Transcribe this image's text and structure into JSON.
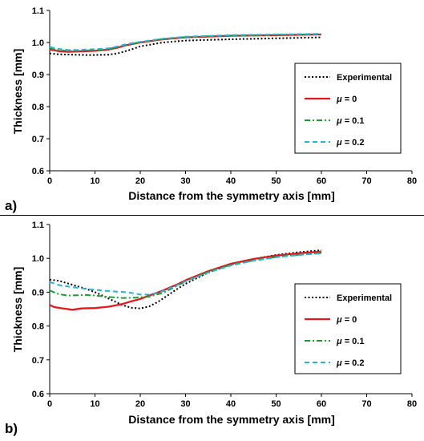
{
  "chart_data": [
    {
      "panel_label": "a)",
      "type": "line",
      "xlabel": "Distance from the symmetry axis [mm]",
      "ylabel": "Thickness [mm]",
      "xlim": [
        0,
        80
      ],
      "ylim": [
        0.6,
        1.1
      ],
      "xticks": [
        "0",
        "10",
        "20",
        "30",
        "40",
        "50",
        "60",
        "70",
        "80"
      ],
      "yticks": [
        "0.6",
        "0.7",
        "0.8",
        "0.9",
        "1.0",
        "1.1"
      ],
      "grid": false,
      "legend_position": "right",
      "series": [
        {
          "name": "Experimental",
          "style": "dotted",
          "color": "#000000",
          "x": [
            0,
            2,
            5,
            8,
            10,
            13,
            15,
            18,
            20,
            25,
            30,
            40,
            50,
            60
          ],
          "y": [
            0.966,
            0.963,
            0.962,
            0.961,
            0.961,
            0.962,
            0.966,
            0.978,
            0.988,
            1.0,
            1.006,
            1.01,
            1.013,
            1.016
          ]
        },
        {
          "name": "μ = 0",
          "style": "solid",
          "color": "#e8161b",
          "x": [
            0,
            2,
            4,
            6,
            8,
            10,
            13,
            15,
            17,
            20,
            25,
            30,
            40,
            50,
            60
          ],
          "y": [
            0.978,
            0.973,
            0.971,
            0.972,
            0.973,
            0.974,
            0.978,
            0.984,
            0.992,
            1.0,
            1.01,
            1.016,
            1.021,
            1.023,
            1.025
          ]
        },
        {
          "name": "μ = 0.1",
          "style": "dashdot",
          "color": "#16a02e",
          "x": [
            0,
            2,
            4,
            6,
            8,
            10,
            13,
            15,
            17,
            20,
            25,
            30,
            40,
            50,
            60
          ],
          "y": [
            0.982,
            0.976,
            0.974,
            0.974,
            0.975,
            0.976,
            0.98,
            0.986,
            0.993,
            1.001,
            1.011,
            1.017,
            1.022,
            1.024,
            1.026
          ]
        },
        {
          "name": "μ = 0.2",
          "style": "dashed",
          "color": "#22b4e6",
          "x": [
            0,
            2,
            4,
            6,
            8,
            10,
            13,
            15,
            17,
            20,
            25,
            30,
            40,
            50,
            60
          ],
          "y": [
            0.986,
            0.98,
            0.977,
            0.977,
            0.978,
            0.979,
            0.982,
            0.988,
            0.995,
            1.002,
            1.012,
            1.018,
            1.023,
            1.025,
            1.027
          ]
        }
      ]
    },
    {
      "panel_label": "b)",
      "type": "line",
      "xlabel": "Distance from the symmetry axis [mm]",
      "ylabel": "Thickness [mm]",
      "xlim": [
        0,
        80
      ],
      "ylim": [
        0.6,
        1.1
      ],
      "xticks": [
        "0",
        "10",
        "20",
        "30",
        "40",
        "50",
        "60",
        "70",
        "80"
      ],
      "yticks": [
        "0.6",
        "0.7",
        "0.8",
        "0.9",
        "1.0",
        "1.1"
      ],
      "grid": false,
      "legend_position": "right",
      "series": [
        {
          "name": "Experimental",
          "style": "dotted",
          "color": "#000000",
          "x": [
            0,
            2,
            5,
            8,
            10,
            12,
            14,
            16,
            18,
            20,
            22,
            24,
            26,
            28,
            30,
            35,
            40,
            45,
            50,
            55,
            60
          ],
          "y": [
            0.937,
            0.934,
            0.922,
            0.91,
            0.9,
            0.888,
            0.875,
            0.862,
            0.854,
            0.852,
            0.858,
            0.872,
            0.89,
            0.908,
            0.925,
            0.958,
            0.982,
            0.998,
            1.01,
            1.018,
            1.024
          ]
        },
        {
          "name": "μ = 0",
          "style": "solid",
          "color": "#e8161b",
          "x": [
            0,
            1,
            3,
            5,
            7,
            10,
            13,
            16,
            18,
            20,
            22,
            25,
            28,
            30,
            35,
            40,
            45,
            50,
            55,
            60
          ],
          "y": [
            0.862,
            0.856,
            0.852,
            0.848,
            0.852,
            0.853,
            0.857,
            0.865,
            0.873,
            0.88,
            0.89,
            0.905,
            0.922,
            0.935,
            0.962,
            0.984,
            0.998,
            1.008,
            1.015,
            1.02
          ]
        },
        {
          "name": "μ = 0.1",
          "style": "dashdot",
          "color": "#16a02e",
          "x": [
            0,
            2,
            4,
            6,
            8,
            10,
            13,
            16,
            19,
            22,
            25,
            28,
            30,
            35,
            40,
            45,
            50,
            55,
            60
          ],
          "y": [
            0.905,
            0.894,
            0.89,
            0.891,
            0.892,
            0.89,
            0.886,
            0.883,
            0.884,
            0.887,
            0.898,
            0.918,
            0.932,
            0.96,
            0.981,
            0.994,
            1.004,
            1.011,
            1.016
          ]
        },
        {
          "name": "μ = 0.2",
          "style": "dashed",
          "color": "#22b4e6",
          "x": [
            0,
            2,
            5,
            8,
            10,
            13,
            16,
            18,
            20,
            22,
            25,
            28,
            30,
            35,
            40,
            45,
            50,
            55,
            60
          ],
          "y": [
            0.93,
            0.921,
            0.915,
            0.91,
            0.907,
            0.903,
            0.901,
            0.898,
            0.893,
            0.893,
            0.903,
            0.92,
            0.932,
            0.958,
            0.979,
            0.993,
            1.003,
            1.01,
            1.015
          ]
        }
      ]
    }
  ]
}
